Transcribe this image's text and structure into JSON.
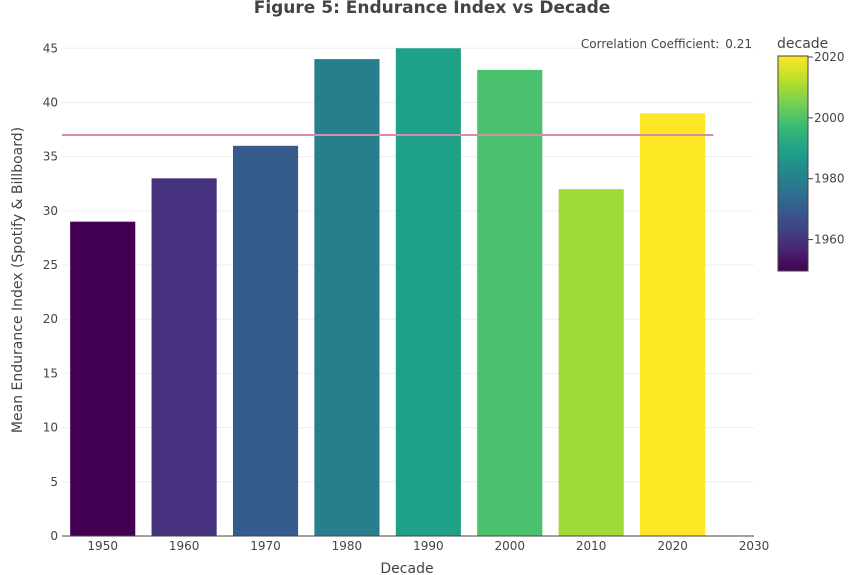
{
  "chart_data": {
    "type": "bar",
    "title": "Figure 5: Endurance Index vs Decade",
    "xlabel": "Decade",
    "ylabel": "Mean Endurance Index (Spotify & Billboard)",
    "x": [
      1950,
      1960,
      1970,
      1980,
      1990,
      2000,
      2010,
      2020
    ],
    "values": [
      29,
      33,
      36,
      44,
      45,
      43,
      32,
      39
    ],
    "xlim": [
      1945,
      2030
    ],
    "ylim": [
      0,
      46.5
    ],
    "xticks": [
      1950,
      1960,
      1970,
      1980,
      1990,
      2000,
      2010,
      2020,
      2030
    ],
    "yticks": [
      0,
      5,
      10,
      15,
      20,
      25,
      30,
      35,
      40,
      45
    ],
    "mean_line": {
      "value": 37,
      "x_range": [
        1945,
        2025
      ],
      "color": "#d98ab0"
    },
    "annotation": {
      "label": "Correlation Coefficient:",
      "value": "0.21"
    },
    "colorbar": {
      "title": "decade",
      "range": [
        1950,
        2020
      ],
      "ticks": [
        1960,
        1980,
        2000,
        2020
      ],
      "colorscale": "viridis"
    },
    "grid": true,
    "bar_colors": [
      "#440154",
      "#46327e",
      "#365c8d",
      "#277f8e",
      "#1fa187",
      "#4ac16d",
      "#a0da39",
      "#fde725"
    ]
  }
}
